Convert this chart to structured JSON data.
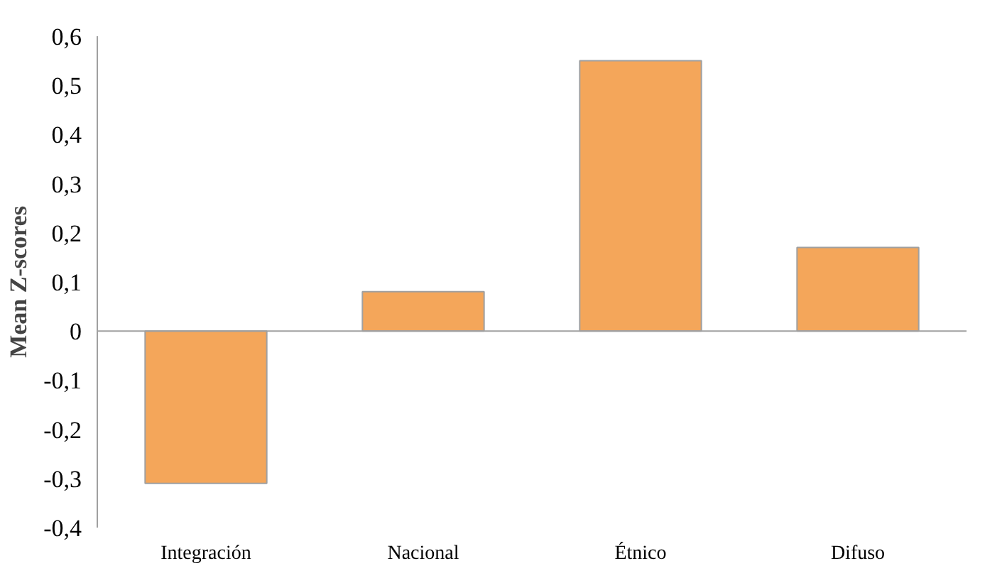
{
  "chart_data": {
    "type": "bar",
    "ylabel": "Mean Z-scores",
    "categories": [
      "Integración",
      "Nacional",
      "Étnico",
      "Difuso"
    ],
    "values": [
      -0.31,
      0.08,
      0.55,
      0.17
    ],
    "color": "#f4a65a",
    "ylim": [
      -0.4,
      0.6
    ],
    "yticks": [
      {
        "value": -0.4,
        "label": "-0,4"
      },
      {
        "value": -0.3,
        "label": "-0,3"
      },
      {
        "value": -0.2,
        "label": "-0,2"
      },
      {
        "value": -0.1,
        "label": "-0,1"
      },
      {
        "value": 0,
        "label": "0"
      },
      {
        "value": 0.1,
        "label": "0,1"
      },
      {
        "value": 0.2,
        "label": "0,2"
      },
      {
        "value": 0.3,
        "label": "0,3"
      },
      {
        "value": 0.4,
        "label": "0,4"
      },
      {
        "value": 0.5,
        "label": "0,5"
      },
      {
        "value": 0.6,
        "label": "0,6"
      }
    ],
    "stacked": false
  }
}
